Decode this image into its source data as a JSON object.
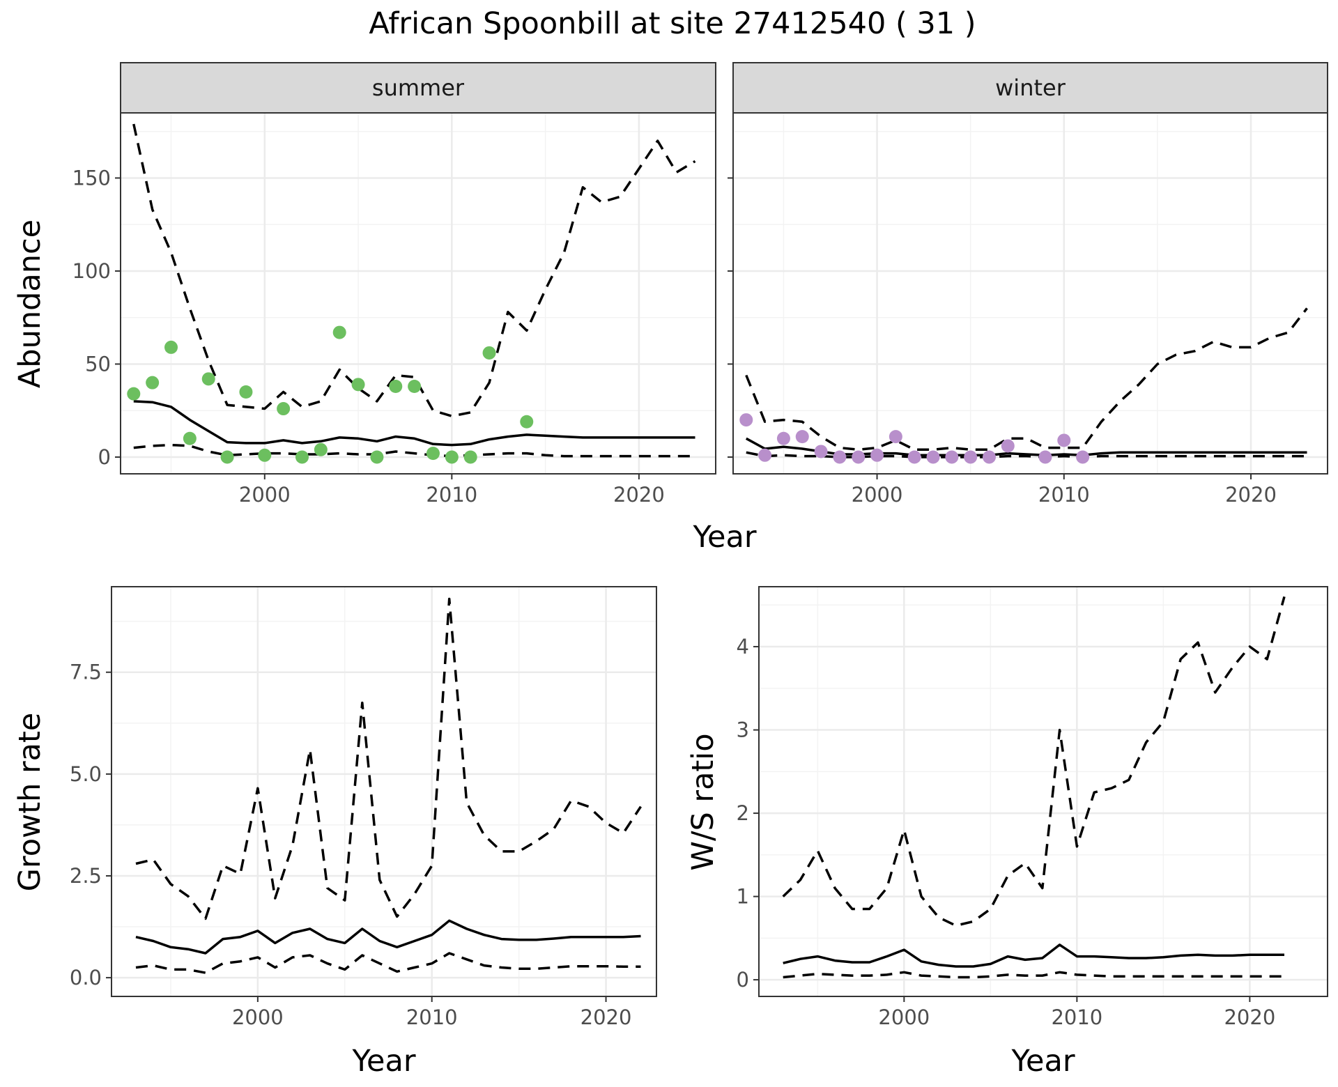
{
  "figure": {
    "title": "African Spoonbill at site 27412540 ( 31 )"
  },
  "chart_data": [
    {
      "type": "line",
      "panel": "summer",
      "strip_label": "summer",
      "xlabel": "",
      "ylabel": "Abundance",
      "xlim": [
        1992.3,
        2024.1
      ],
      "ylim": [
        -9,
        185
      ],
      "xticks": [
        2000,
        2010,
        2020
      ],
      "yticks": [
        0,
        50,
        100,
        150
      ],
      "grid": true,
      "point_color": "#6cbf5f",
      "x": [
        1993,
        1994,
        1995,
        1996,
        1997,
        1998,
        1999,
        2000,
        2001,
        2002,
        2003,
        2004,
        2005,
        2006,
        2007,
        2008,
        2009,
        2010,
        2011,
        2012,
        2013,
        2014,
        2015,
        2016,
        2017,
        2018,
        2019,
        2020,
        2021,
        2022,
        2023
      ],
      "series": [
        {
          "role": "upper",
          "style": "dashed",
          "values": [
            179,
            133,
            110,
            80,
            52,
            28,
            27,
            26,
            35,
            27,
            30,
            47,
            37,
            30,
            44,
            43,
            25,
            22,
            24,
            40,
            78,
            68,
            90,
            110,
            145,
            137,
            140,
            155,
            170,
            153,
            159
          ]
        },
        {
          "role": "estimate",
          "style": "solid",
          "values": [
            30,
            29.5,
            27,
            20,
            14,
            8,
            7.5,
            7.5,
            9,
            7.5,
            8.5,
            10.5,
            10,
            8.5,
            11,
            10,
            7,
            6.5,
            7,
            9.5,
            11,
            12,
            11.5,
            11,
            10.5,
            10.5,
            10.5,
            10.5,
            10.5,
            10.5,
            10.5
          ]
        },
        {
          "role": "lower",
          "style": "dashed",
          "values": [
            5,
            6,
            6.5,
            6,
            3,
            1,
            1.5,
            2,
            2,
            1.5,
            1.5,
            2,
            1.5,
            1.5,
            3,
            2,
            1,
            0.5,
            1,
            1.5,
            2,
            2,
            1,
            0.5,
            0.5,
            0.5,
            0.5,
            0.5,
            0.5,
            0.5,
            0.5
          ]
        }
      ],
      "points": [
        {
          "x": 1993,
          "y": 34
        },
        {
          "x": 1994,
          "y": 40
        },
        {
          "x": 1995,
          "y": 59
        },
        {
          "x": 1996,
          "y": 10
        },
        {
          "x": 1997,
          "y": 42
        },
        {
          "x": 1998,
          "y": 0
        },
        {
          "x": 1999,
          "y": 35
        },
        {
          "x": 2000,
          "y": 1
        },
        {
          "x": 2001,
          "y": 26
        },
        {
          "x": 2002,
          "y": 0
        },
        {
          "x": 2003,
          "y": 4
        },
        {
          "x": 2004,
          "y": 67
        },
        {
          "x": 2005,
          "y": 39
        },
        {
          "x": 2006,
          "y": 0
        },
        {
          "x": 2007,
          "y": 38
        },
        {
          "x": 2008,
          "y": 38
        },
        {
          "x": 2009,
          "y": 2
        },
        {
          "x": 2010,
          "y": 0
        },
        {
          "x": 2011,
          "y": 0
        },
        {
          "x": 2012,
          "y": 56
        },
        {
          "x": 2014,
          "y": 19
        }
      ]
    },
    {
      "type": "line",
      "panel": "winter",
      "strip_label": "winter",
      "xlabel": "",
      "ylabel": "",
      "xlim": [
        1992.3,
        2024.1
      ],
      "ylim": [
        -9,
        185
      ],
      "xticks": [
        2000,
        2010,
        2020
      ],
      "yticks": [
        0,
        50,
        100,
        150
      ],
      "grid": true,
      "point_color": "#b88fcb",
      "x": [
        1993,
        1994,
        1995,
        1996,
        1997,
        1998,
        1999,
        2000,
        2001,
        2002,
        2003,
        2004,
        2005,
        2006,
        2007,
        2008,
        2009,
        2010,
        2011,
        2012,
        2013,
        2014,
        2015,
        2016,
        2017,
        2018,
        2019,
        2020,
        2021,
        2022,
        2023
      ],
      "series": [
        {
          "role": "upper",
          "style": "dashed",
          "values": [
            44,
            19,
            20,
            19,
            11,
            5,
            4,
            5,
            9,
            4,
            4,
            5,
            4,
            4,
            10,
            10,
            5,
            5,
            5,
            19,
            30,
            39,
            50,
            55,
            57,
            62,
            59,
            59,
            64,
            67,
            80
          ]
        },
        {
          "role": "estimate",
          "style": "solid",
          "values": [
            10,
            4.5,
            5.5,
            4.5,
            3,
            1.5,
            1.5,
            2,
            2,
            1,
            1,
            1,
            1,
            1,
            2,
            1.5,
            1,
            1.5,
            1,
            2,
            2.5,
            2.5,
            2.5,
            2.5,
            2.5,
            2.5,
            2.5,
            2.5,
            2.5,
            2.5,
            2.5
          ]
        },
        {
          "role": "lower",
          "style": "dashed",
          "values": [
            2.5,
            0.5,
            1,
            0.5,
            0.5,
            0,
            0,
            0.5,
            0.5,
            0,
            0,
            0,
            0,
            0,
            0.5,
            0.5,
            0,
            0.5,
            0,
            0.5,
            0.5,
            0.5,
            0.5,
            0.5,
            0.5,
            0.5,
            0.5,
            0.5,
            0.5,
            0.5,
            0.5
          ]
        }
      ],
      "points": [
        {
          "x": 1993,
          "y": 20
        },
        {
          "x": 1994,
          "y": 1
        },
        {
          "x": 1995,
          "y": 10
        },
        {
          "x": 1996,
          "y": 11
        },
        {
          "x": 1997,
          "y": 3
        },
        {
          "x": 1998,
          "y": 0
        },
        {
          "x": 1999,
          "y": 0
        },
        {
          "x": 2000,
          "y": 1
        },
        {
          "x": 2001,
          "y": 11
        },
        {
          "x": 2002,
          "y": 0
        },
        {
          "x": 2003,
          "y": 0
        },
        {
          "x": 2004,
          "y": 0
        },
        {
          "x": 2005,
          "y": 0
        },
        {
          "x": 2006,
          "y": 0
        },
        {
          "x": 2007,
          "y": 6
        },
        {
          "x": 2009,
          "y": 0
        },
        {
          "x": 2010,
          "y": 9
        },
        {
          "x": 2011,
          "y": 0
        }
      ]
    },
    {
      "type": "line",
      "panel": "growth",
      "xlabel": "Year",
      "ylabel": "Growth rate",
      "xlim": [
        1991.6,
        2022.9
      ],
      "ylim": [
        -0.46,
        9.6
      ],
      "xticks": [
        2000,
        2010,
        2020
      ],
      "yticks": [
        0.0,
        2.5,
        5.0,
        7.5
      ],
      "ytick_labels": [
        "0.0",
        "2.5",
        "5.0",
        "7.5"
      ],
      "grid": true,
      "x": [
        1993,
        1994,
        1995,
        1996,
        1997,
        1998,
        1999,
        2000,
        2001,
        2002,
        2003,
        2004,
        2005,
        2006,
        2007,
        2008,
        2009,
        2010,
        2011,
        2012,
        2013,
        2014,
        2015,
        2016,
        2017,
        2018,
        2019,
        2020,
        2021,
        2022
      ],
      "series": [
        {
          "role": "upper",
          "style": "dashed",
          "values": [
            2.8,
            2.9,
            2.3,
            2.0,
            1.45,
            2.75,
            2.55,
            4.65,
            1.95,
            3.25,
            5.6,
            2.2,
            1.9,
            6.75,
            2.4,
            1.5,
            2.05,
            2.75,
            9.3,
            4.3,
            3.5,
            3.1,
            3.1,
            3.35,
            3.65,
            4.35,
            4.2,
            3.8,
            3.55,
            4.2
          ]
        },
        {
          "role": "estimate",
          "style": "solid",
          "values": [
            1.0,
            0.9,
            0.75,
            0.7,
            0.6,
            0.95,
            1.0,
            1.15,
            0.85,
            1.1,
            1.2,
            0.95,
            0.85,
            1.2,
            0.9,
            0.75,
            0.9,
            1.05,
            1.4,
            1.2,
            1.05,
            0.95,
            0.93,
            0.93,
            0.96,
            1.0,
            1.0,
            1.0,
            1.0,
            1.02
          ]
        },
        {
          "role": "lower",
          "style": "dashed",
          "values": [
            0.25,
            0.3,
            0.2,
            0.2,
            0.12,
            0.35,
            0.4,
            0.5,
            0.25,
            0.5,
            0.55,
            0.35,
            0.2,
            0.55,
            0.35,
            0.15,
            0.25,
            0.35,
            0.6,
            0.45,
            0.3,
            0.25,
            0.22,
            0.22,
            0.25,
            0.28,
            0.28,
            0.28,
            0.27,
            0.27
          ]
        }
      ]
    },
    {
      "type": "line",
      "panel": "ratio",
      "xlabel": "Year",
      "ylabel": "W/S ratio",
      "xlim": [
        1991.6,
        2024.5
      ],
      "ylim": [
        -0.2,
        4.72
      ],
      "xticks": [
        2000,
        2010,
        2020
      ],
      "yticks": [
        0,
        1,
        2,
        3,
        4
      ],
      "grid": true,
      "x": [
        1993,
        1994,
        1995,
        1996,
        1997,
        1998,
        1999,
        2000,
        2001,
        2002,
        2003,
        2004,
        2005,
        2006,
        2007,
        2008,
        2009,
        2010,
        2011,
        2012,
        2013,
        2014,
        2015,
        2016,
        2017,
        2018,
        2019,
        2020,
        2021,
        2022
      ],
      "series": [
        {
          "role": "upper",
          "style": "dashed",
          "values": [
            1.0,
            1.2,
            1.55,
            1.1,
            0.85,
            0.85,
            1.1,
            1.8,
            1.0,
            0.75,
            0.65,
            0.7,
            0.85,
            1.25,
            1.4,
            1.1,
            3.0,
            1.6,
            2.25,
            2.3,
            2.4,
            2.85,
            3.1,
            3.85,
            4.05,
            3.45,
            3.75,
            4.0,
            3.85,
            4.6
          ]
        },
        {
          "role": "estimate",
          "style": "solid",
          "values": [
            0.2,
            0.25,
            0.28,
            0.23,
            0.21,
            0.21,
            0.28,
            0.36,
            0.22,
            0.18,
            0.16,
            0.16,
            0.19,
            0.28,
            0.24,
            0.26,
            0.42,
            0.28,
            0.28,
            0.27,
            0.26,
            0.26,
            0.27,
            0.29,
            0.3,
            0.29,
            0.29,
            0.3,
            0.3,
            0.3
          ]
        },
        {
          "role": "lower",
          "style": "dashed",
          "values": [
            0.03,
            0.05,
            0.07,
            0.06,
            0.05,
            0.05,
            0.06,
            0.09,
            0.05,
            0.04,
            0.03,
            0.03,
            0.04,
            0.06,
            0.05,
            0.05,
            0.09,
            0.06,
            0.05,
            0.04,
            0.04,
            0.04,
            0.04,
            0.04,
            0.04,
            0.04,
            0.04,
            0.04,
            0.04,
            0.04
          ]
        }
      ]
    }
  ],
  "shared_labels": {
    "top_xlabel": "Year"
  }
}
